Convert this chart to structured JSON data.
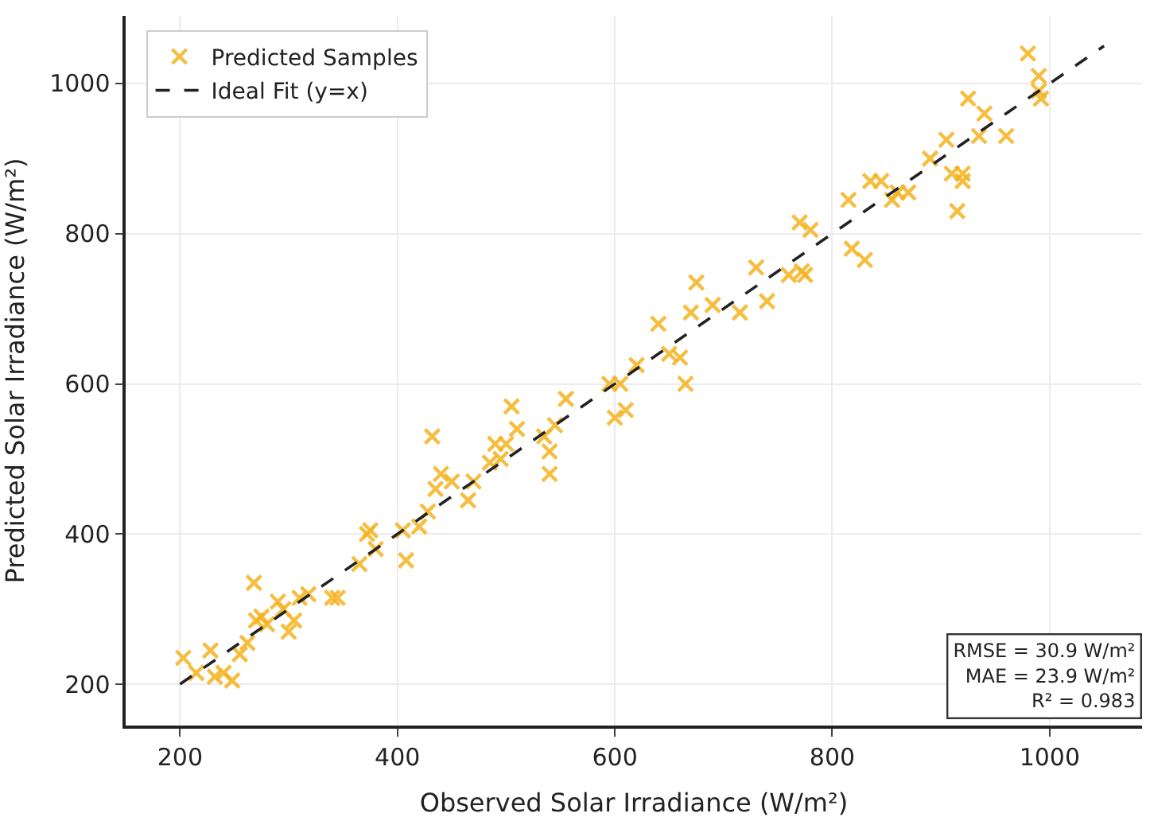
{
  "chart_data": {
    "type": "scatter",
    "xlabel": "Observed Solar Irradiance (W/m²)",
    "ylabel": "Predicted Solar Irradiance (W/m²)",
    "xlim": [
      150,
      1085
    ],
    "ylim": [
      145,
      1090
    ],
    "xticks": [
      200,
      400,
      600,
      800,
      1000
    ],
    "yticks": [
      200,
      400,
      600,
      800,
      1000
    ],
    "grid": true,
    "legend": "top left",
    "annotations": [
      "RMSE = 30.9 W/m²\nMAE = 23.9 W/m²\nR² = 0.983"
    ],
    "series": [
      {
        "name": "Predicted Samples",
        "marker": "cross",
        "color": "#f5b320",
        "x": [
          203,
          215,
          228,
          232,
          240,
          248,
          255,
          262,
          268,
          270,
          275,
          280,
          290,
          295,
          300,
          305,
          310,
          318,
          340,
          345,
          365,
          372,
          375,
          380,
          405,
          408,
          420,
          428,
          432,
          435,
          440,
          450,
          465,
          470,
          485,
          490,
          495,
          500,
          505,
          510,
          535,
          540,
          540,
          545,
          555,
          595,
          600,
          605,
          610,
          620,
          640,
          650,
          660,
          665,
          670,
          675,
          690,
          715,
          730,
          740,
          760,
          770,
          772,
          780,
          775,
          815,
          818,
          830,
          835,
          845,
          855,
          860,
          870,
          890,
          905,
          910,
          915,
          920,
          920,
          925,
          935,
          940,
          960,
          980,
          990,
          990,
          992
        ],
        "values": [
          235,
          215,
          245,
          210,
          215,
          205,
          240,
          255,
          335,
          285,
          290,
          280,
          310,
          300,
          270,
          285,
          315,
          320,
          315,
          315,
          360,
          400,
          405,
          380,
          405,
          365,
          410,
          430,
          530,
          460,
          480,
          470,
          445,
          470,
          495,
          520,
          500,
          520,
          570,
          540,
          530,
          510,
          480,
          545,
          580,
          600,
          555,
          600,
          565,
          625,
          680,
          640,
          635,
          600,
          695,
          735,
          705,
          695,
          755,
          710,
          745,
          815,
          750,
          805,
          745,
          845,
          780,
          765,
          870,
          870,
          845,
          855,
          855,
          900,
          925,
          880,
          830,
          880,
          870,
          980,
          930,
          960,
          930,
          1040,
          1010,
          990,
          980
        ]
      },
      {
        "name": "Ideal Fit (y=x)",
        "type": "line",
        "line_style": "dashed",
        "marker": "none",
        "color": "#222222",
        "x": [
          200,
          1050
        ],
        "values": [
          200,
          1050
        ]
      }
    ]
  }
}
